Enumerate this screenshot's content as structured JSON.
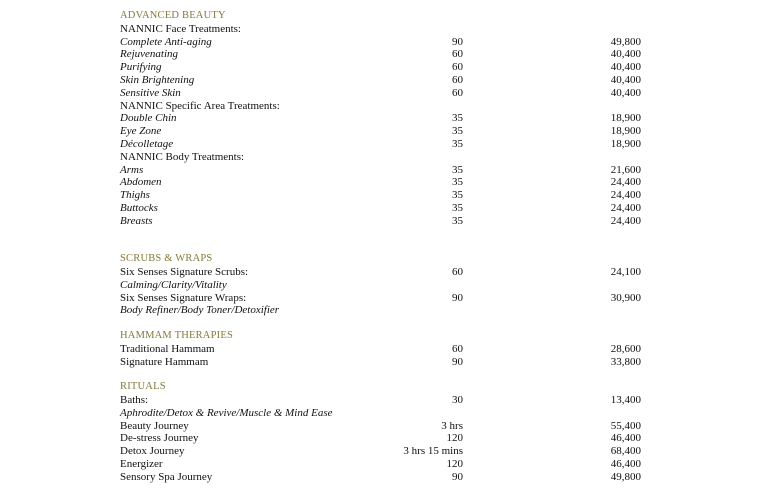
{
  "sections": [
    {
      "heading": "ADVANCED BEAUTY",
      "rows": [
        {
          "label": "NANNIC Face Treatments:",
          "style": "plain"
        },
        {
          "label": "Complete Anti-aging",
          "style": "italic",
          "duration": "90",
          "price": "49,800"
        },
        {
          "label": "Rejuvenating",
          "style": "italic",
          "duration": "60",
          "price": "40,400"
        },
        {
          "label": "Purifying",
          "style": "italic",
          "duration": "60",
          "price": "40,400"
        },
        {
          "label": "Skin Brightening",
          "style": "italic",
          "duration": "60",
          "price": "40,400"
        },
        {
          "label": "Sensitive Skin",
          "style": "italic",
          "duration": "60",
          "price": "40,400"
        },
        {
          "label": "NANNIC Specific Area Treatments:",
          "style": "plain"
        },
        {
          "label": "Double Chin",
          "style": "italic",
          "duration": "35",
          "price": "18,900"
        },
        {
          "label": "Eye Zone",
          "style": "italic",
          "duration": "35",
          "price": "18,900"
        },
        {
          "label": "Décolletage",
          "style": "italic",
          "duration": "35",
          "price": "18,900"
        },
        {
          "label": "NANNIC Body Treatments:",
          "style": "plain"
        },
        {
          "label": "Arms",
          "style": "italic",
          "duration": "35",
          "price": "21,600"
        },
        {
          "label": "Abdomen",
          "style": "italic",
          "duration": "35",
          "price": "24,400"
        },
        {
          "label": "Thighs",
          "style": "italic",
          "duration": "35",
          "price": "24,400"
        },
        {
          "label": "Buttocks",
          "style": "italic",
          "duration": "35",
          "price": "24,400"
        },
        {
          "label": "Breasts",
          "style": "italic",
          "duration": "35",
          "price": "24,400"
        }
      ]
    },
    {
      "heading": "SCRUBS & WRAPS",
      "rows": [
        {
          "label": "Six Senses Signature Scrubs:",
          "style": "plain",
          "duration": "60",
          "price": "24,100"
        },
        {
          "label": "Calming/Clarity/Vitality",
          "style": "italic"
        },
        {
          "label": "Six Senses Signature Wraps:",
          "style": "plain",
          "duration": "90",
          "price": "30,900"
        },
        {
          "label": "Body Refiner/Body Toner/Detoxifier",
          "style": "italic"
        }
      ]
    },
    {
      "heading": "HAMMAM THERAPIES",
      "rows": [
        {
          "label": "Traditional Hammam",
          "style": "plain",
          "duration": "60",
          "price": "28,600"
        },
        {
          "label": "Signature Hammam",
          "style": "plain",
          "duration": "90",
          "price": "33,800"
        }
      ]
    },
    {
      "heading": "RITUALS",
      "rows": [
        {
          "label": "Baths:",
          "style": "plain",
          "duration": "30",
          "price": "13,400"
        },
        {
          "label": "Aphrodite/Detox & Revive/Muscle & Mind Ease",
          "style": "italic"
        },
        {
          "label": "Beauty Journey",
          "style": "plain",
          "duration": "3 hrs",
          "price": "55,400"
        },
        {
          "label": "De-stress Journey",
          "style": "plain",
          "duration": "120",
          "price": "46,400"
        },
        {
          "label": "Detox Journey",
          "style": "plain",
          "duration": "3 hrs 15 mins",
          "price": "68,400"
        },
        {
          "label": "Energizer",
          "style": "plain",
          "duration": "120",
          "price": "46,400"
        },
        {
          "label": "Sensory Spa Journey",
          "style": "plain",
          "duration": "90",
          "price": "49,800"
        }
      ]
    }
  ],
  "colors": {
    "heading": "#857a35",
    "text": "#111111"
  }
}
